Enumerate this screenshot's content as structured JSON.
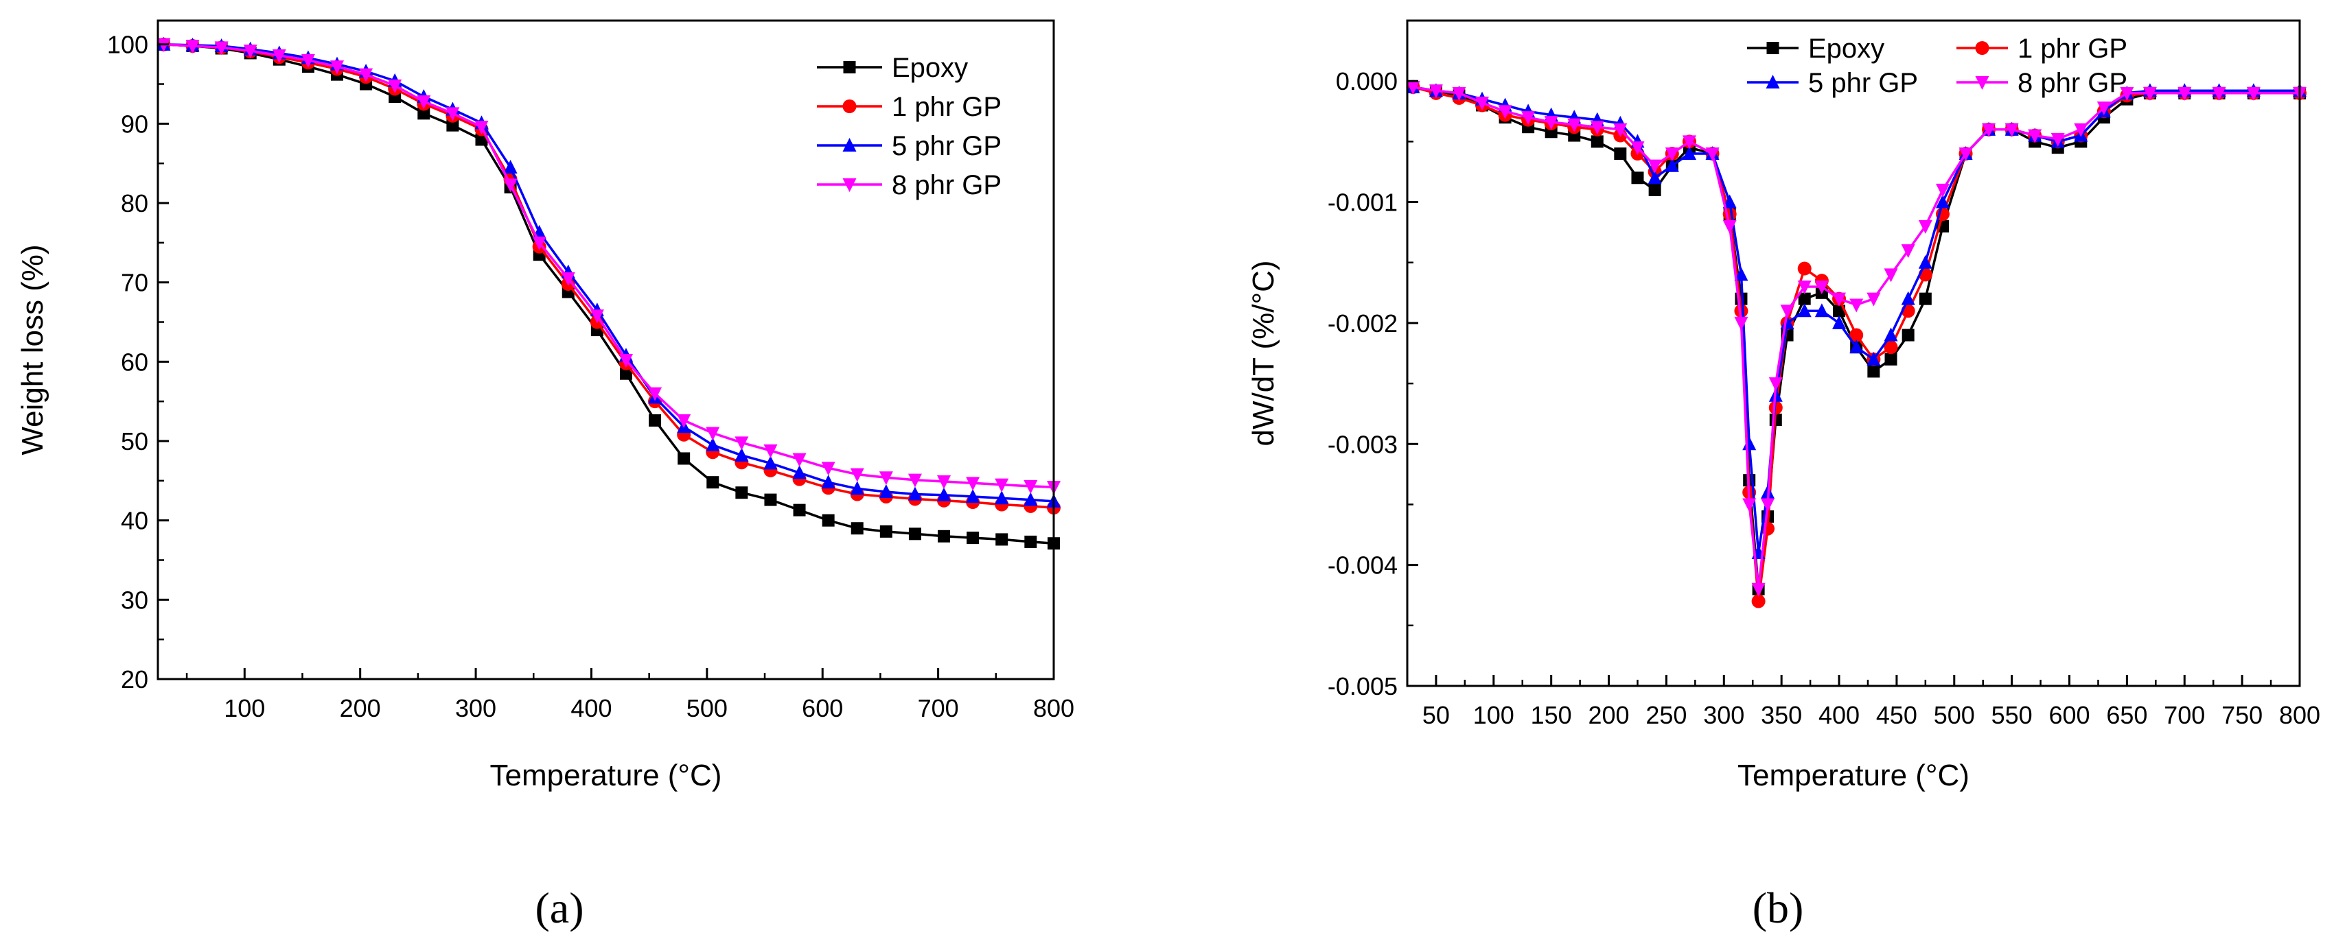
{
  "chart_data": [
    {
      "type": "line",
      "panel_label": "(a)",
      "xlabel": "Temperature (°C)",
      "ylabel": "Weight loss (%)",
      "xlim": [
        25,
        800
      ],
      "ylim": [
        20,
        103
      ],
      "xticks": [
        100,
        200,
        300,
        400,
        500,
        600,
        700,
        800
      ],
      "yticks": [
        20,
        30,
        40,
        50,
        60,
        70,
        80,
        90,
        100
      ],
      "grid": false,
      "legend_position": "top-right",
      "x": [
        30,
        55,
        80,
        105,
        130,
        155,
        180,
        205,
        230,
        255,
        280,
        305,
        330,
        355,
        380,
        405,
        430,
        455,
        480,
        505,
        530,
        555,
        580,
        605,
        630,
        655,
        680,
        705,
        730,
        755,
        780,
        800
      ],
      "series": [
        {
          "name": "Epoxy",
          "color": "#000000",
          "marker": "square",
          "values": [
            100,
            99.8,
            99.5,
            98.9,
            98.1,
            97.2,
            96.2,
            95.0,
            93.4,
            91.3,
            89.8,
            88.0,
            82.0,
            73.5,
            68.8,
            64.0,
            58.5,
            52.6,
            47.8,
            44.8,
            43.5,
            42.6,
            41.3,
            40.0,
            39.0,
            38.6,
            38.3,
            38.0,
            37.8,
            37.6,
            37.3,
            37.1
          ]
        },
        {
          "name": "1 phr GP",
          "color": "#ff0000",
          "marker": "circle",
          "values": [
            100,
            99.8,
            99.6,
            99.1,
            98.4,
            97.7,
            96.9,
            95.9,
            94.4,
            92.5,
            91.0,
            89.3,
            83.0,
            74.5,
            69.8,
            65.0,
            59.8,
            55.0,
            50.8,
            48.6,
            47.3,
            46.3,
            45.2,
            44.1,
            43.3,
            43.0,
            42.7,
            42.5,
            42.3,
            42.0,
            41.8,
            41.6
          ]
        },
        {
          "name": "5 phr GP",
          "color": "#0000ff",
          "marker": "triangle-up",
          "values": [
            100,
            99.9,
            99.8,
            99.4,
            98.9,
            98.3,
            97.5,
            96.6,
            95.4,
            93.4,
            91.8,
            90.1,
            84.5,
            76.3,
            71.3,
            66.5,
            60.8,
            55.5,
            51.8,
            49.5,
            48.2,
            47.2,
            46.0,
            44.8,
            44.0,
            43.6,
            43.3,
            43.2,
            43.0,
            42.8,
            42.6,
            42.4
          ]
        },
        {
          "name": "8 phr GP",
          "color": "#ff00ff",
          "marker": "triangle-down",
          "values": [
            100,
            99.8,
            99.6,
            99.2,
            98.6,
            98.0,
            97.2,
            96.2,
            94.8,
            92.8,
            91.3,
            89.6,
            82.3,
            75.0,
            70.5,
            65.8,
            60.2,
            56.0,
            52.6,
            51.0,
            49.8,
            48.8,
            47.7,
            46.6,
            45.8,
            45.4,
            45.1,
            44.9,
            44.7,
            44.5,
            44.3,
            44.2
          ]
        }
      ]
    },
    {
      "type": "line",
      "panel_label": "(b)",
      "xlabel": "Temperature (°C)",
      "ylabel": "dW/dT (%/°C)",
      "xlim": [
        25,
        800
      ],
      "ylim": [
        -0.005,
        0.0005
      ],
      "xticks": [
        50,
        100,
        150,
        200,
        250,
        300,
        350,
        400,
        450,
        500,
        550,
        600,
        650,
        700,
        750,
        800
      ],
      "yticks": [
        0.0,
        -0.001,
        -0.002,
        -0.003,
        -0.004,
        -0.005
      ],
      "ytick_labels": [
        "0.000",
        "-0.001",
        "-0.002",
        "-0.003",
        "-0.004",
        "-0.005"
      ],
      "grid": false,
      "legend_position": "top-center",
      "x": [
        30,
        50,
        70,
        90,
        110,
        130,
        150,
        170,
        190,
        210,
        225,
        240,
        255,
        270,
        290,
        305,
        315,
        322,
        330,
        338,
        345,
        355,
        370,
        385,
        400,
        415,
        430,
        445,
        460,
        475,
        490,
        510,
        530,
        550,
        570,
        590,
        610,
        630,
        650,
        670,
        700,
        730,
        760,
        800
      ],
      "series": [
        {
          "name": "Epoxy",
          "color": "#000000",
          "marker": "square",
          "values": [
            -5e-05,
            -8e-05,
            -0.00012,
            -0.0002,
            -0.0003,
            -0.00038,
            -0.00042,
            -0.00045,
            -0.0005,
            -0.0006,
            -0.0008,
            -0.0009,
            -0.0007,
            -0.00055,
            -0.0006,
            -0.0011,
            -0.0018,
            -0.0033,
            -0.0042,
            -0.0036,
            -0.0028,
            -0.0021,
            -0.0018,
            -0.00175,
            -0.0019,
            -0.0022,
            -0.0024,
            -0.0023,
            -0.0021,
            -0.0018,
            -0.0012,
            -0.0006,
            -0.0004,
            -0.0004,
            -0.0005,
            -0.00055,
            -0.0005,
            -0.0003,
            -0.00015,
            -0.0001,
            -0.0001,
            -0.0001,
            -0.0001,
            -0.0001
          ]
        },
        {
          "name": "1 phr GP",
          "color": "#ff0000",
          "marker": "circle",
          "values": [
            -5e-05,
            -0.0001,
            -0.00014,
            -0.0002,
            -0.00028,
            -0.00032,
            -0.00035,
            -0.00038,
            -0.0004,
            -0.00045,
            -0.0006,
            -0.00075,
            -0.0006,
            -0.0005,
            -0.0006,
            -0.0011,
            -0.0019,
            -0.0034,
            -0.0043,
            -0.0037,
            -0.0027,
            -0.002,
            -0.00155,
            -0.00165,
            -0.0018,
            -0.0021,
            -0.0023,
            -0.0022,
            -0.0019,
            -0.0016,
            -0.0011,
            -0.0006,
            -0.0004,
            -0.0004,
            -0.00045,
            -0.0005,
            -0.00045,
            -0.00025,
            -0.00012,
            -0.0001,
            -0.0001,
            -0.0001,
            -0.0001,
            -0.0001
          ]
        },
        {
          "name": "5 phr GP",
          "color": "#0000ff",
          "marker": "triangle-up",
          "values": [
            -5e-05,
            -8e-05,
            -0.0001,
            -0.00015,
            -0.0002,
            -0.00025,
            -0.00028,
            -0.0003,
            -0.00032,
            -0.00035,
            -0.0005,
            -0.0008,
            -0.0007,
            -0.0006,
            -0.0006,
            -0.001,
            -0.0016,
            -0.003,
            -0.0039,
            -0.0034,
            -0.0026,
            -0.002,
            -0.0019,
            -0.0019,
            -0.002,
            -0.0022,
            -0.0023,
            -0.0021,
            -0.0018,
            -0.0015,
            -0.001,
            -0.0006,
            -0.0004,
            -0.0004,
            -0.00045,
            -0.0005,
            -0.00045,
            -0.00025,
            -0.0001,
            -8e-05,
            -8e-05,
            -8e-05,
            -8e-05,
            -8e-05
          ]
        },
        {
          "name": "8 phr GP",
          "color": "#ff00ff",
          "marker": "triangle-down",
          "values": [
            -5e-05,
            -8e-05,
            -0.0001,
            -0.00018,
            -0.00025,
            -0.0003,
            -0.00034,
            -0.00036,
            -0.00038,
            -0.0004,
            -0.00055,
            -0.0007,
            -0.0006,
            -0.0005,
            -0.0006,
            -0.0012,
            -0.002,
            -0.0035,
            -0.0042,
            -0.0035,
            -0.0025,
            -0.0019,
            -0.0017,
            -0.0017,
            -0.0018,
            -0.00185,
            -0.0018,
            -0.0016,
            -0.0014,
            -0.0012,
            -0.0009,
            -0.0006,
            -0.0004,
            -0.0004,
            -0.00045,
            -0.00048,
            -0.0004,
            -0.00022,
            -0.0001,
            -0.0001,
            -0.0001,
            -0.0001,
            -0.0001,
            -0.0001
          ]
        }
      ]
    }
  ]
}
